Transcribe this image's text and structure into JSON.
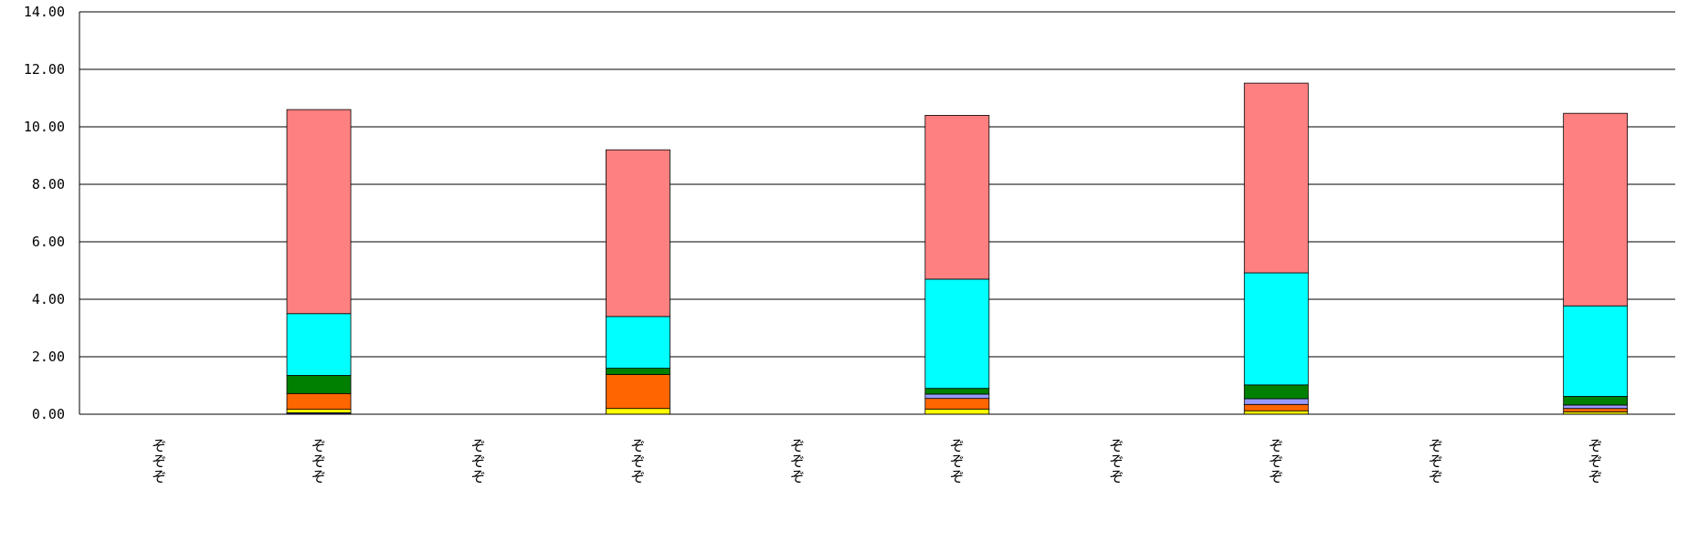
{
  "chart_data": {
    "type": "bar",
    "stacked": true,
    "title": "",
    "xlabel": "",
    "ylabel": "",
    "ylim": [
      0,
      14
    ],
    "yticks": [
      "0.00",
      "2.00",
      "4.00",
      "6.00",
      "8.00",
      "10.00",
      "12.00",
      "14.00"
    ],
    "grid": true,
    "legend": "none",
    "categories": [
      "ぞぞぞ",
      "ぞぞぞ",
      "ぞぞぞ",
      "ぞぞぞ",
      "ぞぞぞ",
      "ぞぞぞ",
      "ぞぞぞ",
      "ぞぞぞ",
      "ぞぞぞ",
      "ぞぞぞ"
    ],
    "series": [
      {
        "color": "#1a1a8c",
        "values": [
          0,
          0.05,
          0,
          0.0,
          0,
          0.0,
          0,
          0.0,
          0,
          0.0
        ]
      },
      {
        "color": "#ffff00",
        "values": [
          0,
          0.12,
          0,
          0.2,
          0,
          0.18,
          0,
          0.12,
          0,
          0.08
        ]
      },
      {
        "color": "#ff6600",
        "values": [
          0,
          0.55,
          0,
          1.18,
          0,
          0.37,
          0,
          0.22,
          0,
          0.12
        ]
      },
      {
        "color": "#9999ff",
        "values": [
          0,
          0.0,
          0,
          0.0,
          0,
          0.15,
          0,
          0.2,
          0,
          0.12
        ]
      },
      {
        "color": "#008000",
        "values": [
          0,
          0.63,
          0,
          0.22,
          0,
          0.2,
          0,
          0.48,
          0,
          0.3
        ]
      },
      {
        "color": "#00ffff",
        "values": [
          0,
          2.15,
          0,
          1.8,
          0,
          3.8,
          0,
          3.9,
          0,
          3.15
        ]
      },
      {
        "color": "#ff8080",
        "values": [
          0,
          7.1,
          0,
          5.8,
          0,
          5.7,
          0,
          6.6,
          0,
          6.7
        ]
      }
    ]
  }
}
